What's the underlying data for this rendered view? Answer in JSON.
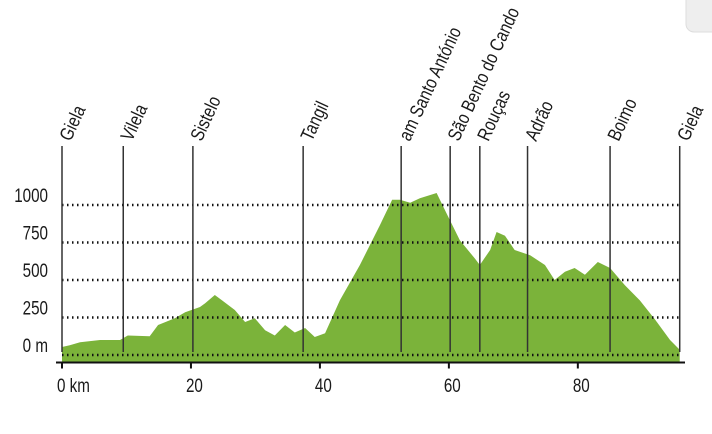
{
  "chart_data": {
    "type": "area",
    "color": "#7bb33a",
    "x": [
      0,
      1.2,
      2.8,
      5.9,
      9,
      10.2,
      13.6,
      14.9,
      17.5,
      19.1,
      21.4,
      22.2,
      23.7,
      24.8,
      26.8,
      28.4,
      29.9,
      31.5,
      33,
      34.6,
      36.1,
      37.7,
      39.2,
      40.8,
      43.1,
      46.2,
      49.3,
      51.2,
      52.4,
      54,
      55.5,
      58.1,
      59.4,
      61.7,
      64,
      64.8,
      66.4,
      67.4,
      68.7,
      70.2,
      72.6,
      74.9,
      76.4,
      78,
      79.5,
      81.1,
      83.1,
      85,
      87.3,
      89.6,
      92,
      94.3,
      95.8
    ],
    "values": [
      53,
      65,
      85,
      100,
      100,
      130,
      125,
      200,
      245,
      285,
      320,
      345,
      400,
      365,
      300,
      220,
      245,
      165,
      130,
      200,
      150,
      180,
      120,
      145,
      365,
      600,
      865,
      1035,
      1035,
      1015,
      1045,
      1080,
      965,
      765,
      645,
      600,
      700,
      820,
      795,
      700,
      665,
      600,
      500,
      555,
      580,
      535,
      620,
      580,
      465,
      365,
      235,
      100,
      35
    ],
    "places": [
      {
        "name": "Giela",
        "km": 0
      },
      {
        "name": "Vilela",
        "km": 9.5
      },
      {
        "name": "Sistelo",
        "km": 20.3
      },
      {
        "name": "Tangil",
        "km": 37.4
      },
      {
        "name": "am Santo António",
        "km": 52.6
      },
      {
        "name": "São Bento do Cando",
        "km": 60.2
      },
      {
        "name": "Rouças",
        "km": 64.8
      },
      {
        "name": "Adrão",
        "km": 72.2
      },
      {
        "name": "Boimo",
        "km": 85
      },
      {
        "name": "Giela",
        "km": 95.8
      }
    ],
    "xlim": [
      0,
      96
    ],
    "ylim": [
      -50,
      1000
    ],
    "xticks": [
      {
        "value": 0,
        "label": "0 km"
      },
      20,
      40,
      60,
      80
    ],
    "yticks": [
      {
        "value": 0,
        "label": "0 m"
      },
      250,
      500,
      750,
      1000
    ],
    "grid": true
  }
}
